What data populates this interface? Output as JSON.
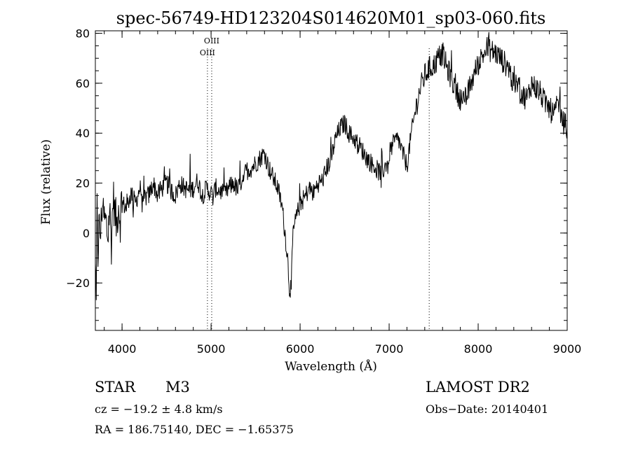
{
  "chart_data": {
    "type": "line",
    "title": "spec-56749-HD123204S014620M01_sp03-060.fits",
    "xlabel": "Wavelength (Å)",
    "ylabel": "Flux (relative)",
    "xlim": [
      3700,
      9000
    ],
    "ylim": [
      -39,
      81
    ],
    "xticks": [
      4000,
      5000,
      6000,
      7000,
      8000,
      9000
    ],
    "yticks": [
      -20,
      0,
      20,
      40,
      60,
      80
    ],
    "xtick_labels": [
      "4000",
      "5000",
      "6000",
      "7000",
      "8000",
      "9000"
    ],
    "ytick_labels": [
      "−20",
      "0",
      "20",
      "40",
      "60",
      "80"
    ],
    "x_minor_step": 200,
    "y_minor_step": 5,
    "grid": false,
    "lines": [
      {
        "label": "OIII",
        "x": 4959
      },
      {
        "label": "OIII",
        "x": 5007
      },
      {
        "label": "",
        "x": 7450
      }
    ],
    "series": [
      {
        "x": [
          3700,
          3710,
          3720,
          3730,
          3740,
          3760,
          3780,
          3800,
          3820,
          3840,
          3860,
          3880,
          3900,
          3920,
          3940,
          3960,
          3980,
          4000,
          4050,
          4100,
          4150,
          4200,
          4250,
          4300,
          4350,
          4400,
          4450,
          4500,
          4550,
          4600,
          4650,
          4700,
          4750,
          4800,
          4850,
          4900,
          4950,
          5000,
          5020,
          5050,
          5100,
          5150,
          5200,
          5250,
          5300,
          5350,
          5400,
          5450,
          5500,
          5550,
          5600,
          5650,
          5700,
          5750,
          5800,
          5830,
          5860,
          5880,
          5900,
          5920,
          5950,
          6000,
          6050,
          6100,
          6150,
          6200,
          6250,
          6300,
          6350,
          6400,
          6450,
          6500,
          6550,
          6600,
          6650,
          6700,
          6750,
          6800,
          6850,
          6900,
          6950,
          7000,
          7050,
          7100,
          7150,
          7200,
          7250,
          7300,
          7350,
          7400,
          7450,
          7500,
          7550,
          7600,
          7650,
          7700,
          7750,
          7800,
          7850,
          7900,
          7950,
          8000,
          8050,
          8100,
          8150,
          8200,
          8250,
          8300,
          8350,
          8400,
          8450,
          8500,
          8550,
          8600,
          8650,
          8700,
          8750,
          8800,
          8850,
          8900,
          8950,
          9000
        ],
        "values": [
          -15,
          -30,
          10,
          -8,
          2,
          0,
          14,
          5,
          4,
          -2,
          10,
          -4,
          15,
          8,
          3,
          12,
          5,
          12,
          10,
          16,
          12,
          18,
          14,
          15,
          20,
          15,
          18,
          20,
          17,
          15,
          20,
          18,
          17,
          18,
          21,
          15,
          18,
          16,
          14,
          18,
          17,
          15,
          18,
          20,
          17,
          22,
          25,
          26,
          28,
          30,
          32,
          26,
          22,
          18,
          10,
          0,
          -10,
          -22,
          -22,
          0,
          5,
          12,
          14,
          18,
          16,
          20,
          21,
          26,
          30,
          38,
          42,
          44,
          40,
          38,
          36,
          33,
          30,
          28,
          26,
          24,
          26,
          32,
          36,
          38,
          32,
          27,
          40,
          50,
          58,
          63,
          66,
          67,
          70,
          72,
          66,
          62,
          57,
          54,
          52,
          58,
          63,
          68,
          71,
          74,
          73,
          72,
          70,
          68,
          66,
          58,
          60,
          55,
          54,
          60,
          58,
          56,
          52,
          50,
          47,
          52,
          45,
          42
        ]
      }
    ]
  },
  "info": {
    "object_class": "STAR",
    "subclass": "M3",
    "cz": "cz = −19.2 ± 4.8 km/s",
    "radec": "RA = 186.75140, DEC =  −1.65375",
    "survey": "LAMOST DR2",
    "obs_date": "Obs−Date: 20140401"
  }
}
